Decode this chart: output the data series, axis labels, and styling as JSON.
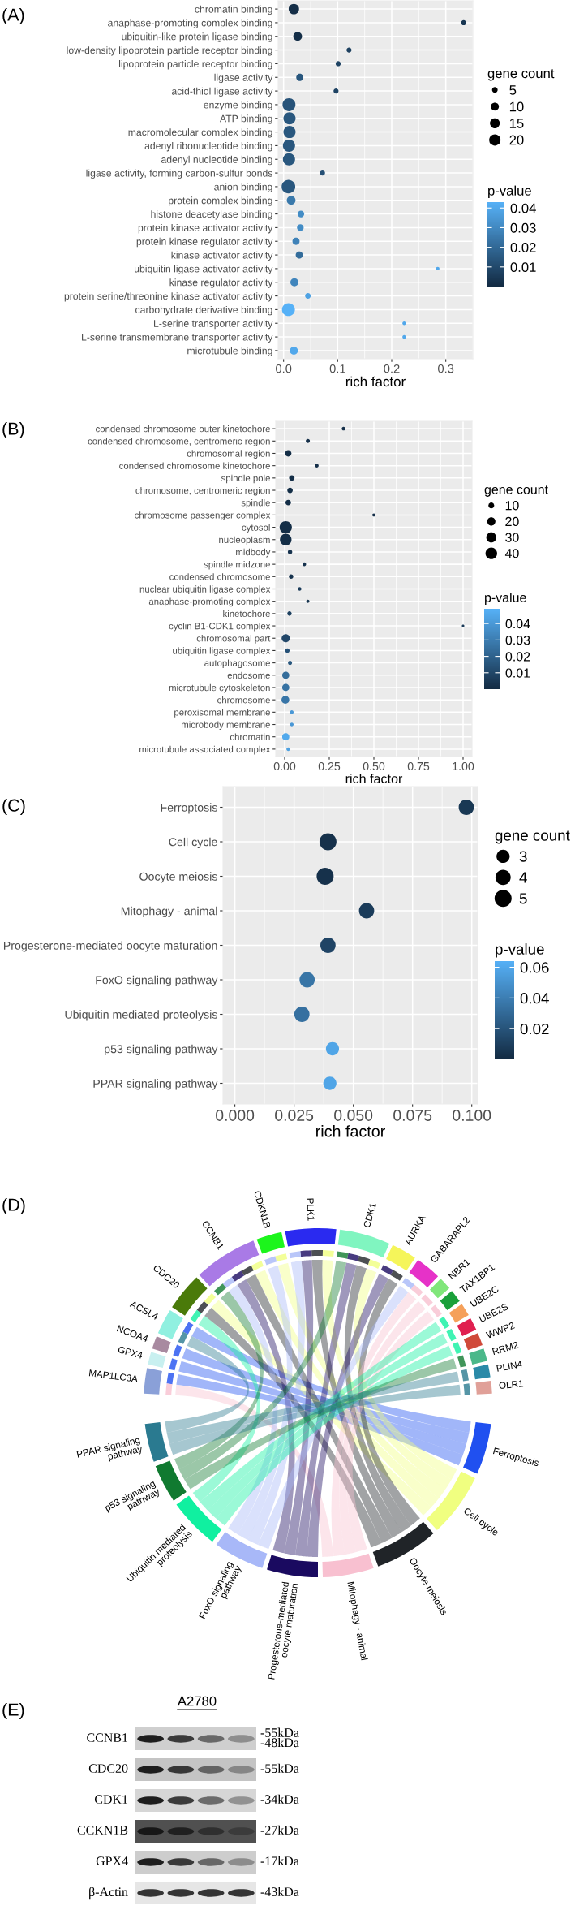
{
  "chart_data": [
    {
      "type": "bubble",
      "title": "(A)",
      "xlabel": "rich factor",
      "legend_title": "gene count",
      "clabel": "p-value",
      "orientation": "horizontal",
      "categories": [
        "chromatin binding",
        "anaphase-promoting complex binding",
        "ubiquitin-like protein ligase binding",
        "low-density lipoprotein particle receptor binding",
        "lipoprotein particle receptor binding",
        "ligase activity",
        "acid-thiol ligase activity",
        "enzyme binding",
        "ATP binding",
        "macromolecular complex binding",
        "adenyl ribonucleotide binding",
        "adenyl nucleotide binding",
        "ligase activity, forming carbon-sulfur bonds",
        "anion binding",
        "protein complex binding",
        "histone deacetylase binding",
        "protein kinase activator activity",
        "protein kinase regulator activity",
        "kinase activator activity",
        "ubiquitin ligase activator activity",
        "kinase regulator activity",
        "protein serine/threonine kinase activator activity",
        "carbohydrate derivative binding",
        "L-serine transporter activity",
        "L-serine transmembrane transporter activity",
        "microtubule binding"
      ],
      "values": [
        0.019,
        0.333,
        0.026,
        0.121,
        0.101,
        0.03,
        0.097,
        0.01,
        0.011,
        0.011,
        0.01,
        0.01,
        0.072,
        0.009,
        0.014,
        0.032,
        0.031,
        0.023,
        0.029,
        0.285,
        0.02,
        0.045,
        0.009,
        0.223,
        0.223,
        0.019
      ],
      "sizes": [
        17,
        4,
        12,
        4,
        4,
        8,
        4,
        26,
        23,
        23,
        23,
        23,
        4,
        29,
        12,
        7,
        7,
        8,
        8,
        2,
        10,
        5,
        26,
        2,
        2,
        10
      ],
      "cvalues": [
        0.001,
        0.004,
        0.001,
        0.007,
        0.008,
        0.014,
        0.008,
        0.013,
        0.014,
        0.014,
        0.014,
        0.014,
        0.012,
        0.014,
        0.025,
        0.031,
        0.031,
        0.028,
        0.021,
        0.04,
        0.029,
        0.038,
        0.043,
        0.04,
        0.04,
        0.04
      ],
      "xlim": [
        -0.01,
        0.35
      ],
      "xticks": [
        {
          "value": 0,
          "label": "0.0"
        },
        {
          "value": 0.1,
          "label": "0.1"
        },
        {
          "value": 0.2,
          "label": "0.2"
        },
        {
          "value": 0.3,
          "label": "0.3"
        }
      ],
      "size_legend": [
        5,
        10,
        15,
        20
      ],
      "clim": [
        0.0,
        0.043
      ],
      "cticks": [
        0.01,
        0.02,
        0.03,
        0.04
      ],
      "grid": true
    },
    {
      "type": "bubble",
      "title": "(B)",
      "xlabel": "rich factor",
      "legend_title": "gene count",
      "clabel": "p-value",
      "orientation": "horizontal",
      "categories": [
        "condensed chromosome outer kinetochore",
        "condensed chromosome, centromeric region",
        "chromosomal region",
        "condensed chromosome kinetochore",
        "spindle pole",
        "chromosome, centromeric region",
        "spindle",
        "chromosome passenger complex",
        "cytosol",
        "nucleoplasm",
        "midbody",
        "spindle midzone",
        "condensed chromosome",
        "nuclear ubiquitin ligase complex",
        "anaphase-promoting complex",
        "kinetochore",
        "cyclin B1-CDK1 complex",
        "chromosomal part",
        "ubiquitin ligase complex",
        "autophagosome",
        "endosome",
        "microtubule cytoskeleton",
        "chromosome",
        "peroxisomal membrane",
        "microbody membrane",
        "chromatin",
        "microtubule associated complex"
      ],
      "values": [
        0.33,
        0.13,
        0.02,
        0.18,
        0.04,
        0.03,
        0.02,
        0.5,
        0.006,
        0.006,
        0.03,
        0.11,
        0.036,
        0.084,
        0.13,
        0.027,
        1.0,
        0.006,
        0.015,
        0.03,
        0.006,
        0.006,
        0.004,
        0.04,
        0.04,
        0.006,
        0.02
      ],
      "sizes": [
        4,
        5,
        12,
        4,
        9,
        9,
        9,
        3,
        45,
        40,
        6,
        4,
        6,
        4,
        3,
        6,
        2,
        20,
        6,
        5,
        15,
        15,
        18,
        4,
        4,
        15,
        4
      ],
      "cvalues": [
        0.002,
        0.002,
        0.001,
        0.002,
        0.001,
        0.001,
        0.001,
        0.002,
        0.001,
        0.001,
        0.003,
        0.003,
        0.003,
        0.006,
        0.004,
        0.008,
        0.006,
        0.01,
        0.014,
        0.016,
        0.024,
        0.026,
        0.027,
        0.04,
        0.04,
        0.046,
        0.043
      ],
      "xlim": [
        -0.05,
        1.05
      ],
      "xticks": [
        {
          "value": 0,
          "label": "0.00"
        },
        {
          "value": 0.25,
          "label": "0.25"
        },
        {
          "value": 0.5,
          "label": "0.50"
        },
        {
          "value": 0.75,
          "label": "0.75"
        },
        {
          "value": 1,
          "label": "1.00"
        }
      ],
      "size_legend": [
        10,
        20,
        30,
        40
      ],
      "clim": [
        0.0,
        0.049
      ],
      "cticks": [
        0.01,
        0.02,
        0.03,
        0.04
      ],
      "grid": true
    },
    {
      "type": "bubble",
      "title": "(C)",
      "xlabel": "rich factor",
      "legend_title": "gene count",
      "clabel": "p-value",
      "orientation": "horizontal",
      "categories": [
        "Ferroptosis",
        "Cell cycle",
        "Oocyte meiosis",
        "Mitophagy - animal",
        "Progesterone-mediated oocyte maturation",
        "FoxO signaling pathway",
        "Ubiquitin mediated proteolysis",
        "p53 signaling pathway",
        "PPAR signaling pathway"
      ],
      "values": [
        0.0977,
        0.0393,
        0.0381,
        0.0556,
        0.0393,
        0.0305,
        0.0283,
        0.0412,
        0.0401
      ],
      "sizes": [
        4,
        5,
        5,
        4,
        4,
        4,
        4,
        3,
        3
      ],
      "cvalues": [
        0.006,
        0.003,
        0.003,
        0.008,
        0.012,
        0.035,
        0.033,
        0.058,
        0.058
      ],
      "xlim": [
        -0.005,
        0.1025
      ],
      "xticks": [
        {
          "value": 0,
          "label": "0.000"
        },
        {
          "value": 0.025,
          "label": "0.025"
        },
        {
          "value": 0.05,
          "label": "0.050"
        },
        {
          "value": 0.075,
          "label": "0.075"
        },
        {
          "value": 0.1,
          "label": "0.100"
        }
      ],
      "size_legend": [
        3,
        4,
        5
      ],
      "clim": [
        0.0,
        0.064
      ],
      "cticks": [
        0.02,
        0.04,
        0.06
      ],
      "grid": true
    },
    {
      "type": "other",
      "title": "(D)",
      "categories": [
        "MAP1LC3A",
        "GPX4",
        "NCOA4",
        "ACSL4",
        "CDC20",
        "CCNB1",
        "CDKN1B",
        "PLK1",
        "CDK1",
        "AURKA",
        "GABARAPL2",
        "NBR1",
        "TAX1BP1",
        "UBE2C",
        "UBE2S",
        "WWP2",
        "RRM2",
        "PLIN4",
        "OLR1",
        "Ferroptosis",
        "Cell cycle",
        "Oocyte meiosis",
        "Mitophagy - animal",
        "Progesterone-mediated\noocyte maturation",
        "FoxO signaling\npathway",
        "Ubiquitin mediated\nproteolysis",
        "p53 signaling\npathway",
        "PPAR signaling\npathway"
      ],
      "colors": [
        "#8aa0d8",
        "#c8f0f0",
        "#a88aa0",
        "#90f0e0",
        "#4a7a0a",
        "#a97ae6",
        "#1cf51c",
        "#2a2af0",
        "#80f5c0",
        "#f5f55a",
        "#e632c8",
        "#80e67a",
        "#1aa03a",
        "#f5a05a",
        "#e02050",
        "#d04a3a",
        "#4ab88a",
        "#2a8aa8",
        "#e0a098",
        "#2050f0",
        "#f0ff80",
        "#202428",
        "#f8c0d0",
        "#1a0a60",
        "#a8b8f8",
        "#10f0a0",
        "#107a30",
        "#2a7a90"
      ]
    },
    {
      "type": "other",
      "title": "(E)",
      "subtitle": "A2780",
      "categories": [
        "CCNB1",
        "CDC20",
        "CDK1",
        "CCKN1B",
        "GPX4",
        "β-Actin"
      ],
      "y2_categories": [
        "-55kDa\n-48kDa",
        "-55kDa",
        "-34kDa",
        "-27kDa",
        "-17kDa",
        "-43kDa"
      ]
    }
  ]
}
